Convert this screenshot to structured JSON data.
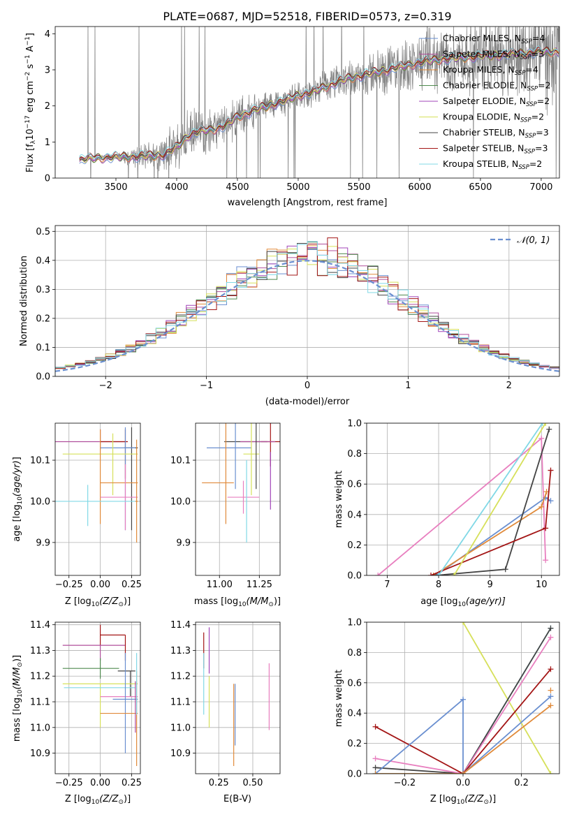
{
  "figure": {
    "title": "PLATE=0687, MJD=52518, FIBERID=0573, z=0.319"
  },
  "colors": {
    "chabrier_miles": "#6a8fd0",
    "salpeter_miles": "#b04f9c",
    "kroupa_miles": "#e08a3a",
    "chabrier_elodie": "#4f8a4f",
    "salpeter_elodie": "#a044b8",
    "kroupa_elodie": "#d6e05a",
    "chabrier_stelib": "#444444",
    "salpeter_stelib": "#a31515",
    "kroupa_stelib": "#80d8e6",
    "pink": "#e87fbf",
    "data_gray": "#808080",
    "normal_dashed": "#6a8fd0"
  },
  "chart_data": [
    {
      "id": "spectrum",
      "type": "line",
      "xlabel": "wavelength [Angstrom, rest frame]",
      "ylabel": "Flux [f_λ 10^-17 erg cm^-2 s^-1 A^-1]",
      "xlim": [
        3000,
        7150
      ],
      "ylim": [
        0,
        4.2
      ],
      "xticks": [
        3500,
        4000,
        4500,
        5000,
        5500,
        6000,
        6500,
        7000
      ],
      "yticks": [
        0,
        1,
        2,
        3,
        4
      ],
      "grid": false,
      "legend_position": "upper-right",
      "legend": [
        {
          "prefix": "Chabrier MILES, N",
          "sub": "SSP",
          "suffix": "=4",
          "color": "#6a8fd0"
        },
        {
          "prefix": "Salpeter MILES, N",
          "sub": "SSP",
          "suffix": "=3",
          "color": "#b04f9c"
        },
        {
          "prefix": "Kroupa MILES, N",
          "sub": "SSP",
          "suffix": "=4",
          "color": "#e08a3a"
        },
        {
          "prefix": "Chabrier ELODIE, N",
          "sub": "SSP",
          "suffix": "=2",
          "color": "#4f8a4f"
        },
        {
          "prefix": "Salpeter ELODIE, N",
          "sub": "SSP",
          "suffix": "=2",
          "color": "#a044b8"
        },
        {
          "prefix": "Kroupa ELODIE, N",
          "sub": "SSP",
          "suffix": "=2",
          "color": "#d6e05a"
        },
        {
          "prefix": "Chabrier STELIB, N",
          "sub": "SSP",
          "suffix": "=3",
          "color": "#444444"
        },
        {
          "prefix": "Salpeter STELIB, N",
          "sub": "SSP",
          "suffix": "=3",
          "color": "#a31515"
        },
        {
          "prefix": "Kroupa STELIB, N",
          "sub": "SSP",
          "suffix": "=2",
          "color": "#80d8e6"
        }
      ],
      "continuum": {
        "x": [
          3200,
          3300,
          3500,
          3700,
          3800,
          3900,
          4000,
          4100,
          4200,
          4300,
          4400,
          4500,
          4700,
          4900,
          5000,
          5100,
          5200,
          5400,
          5600,
          5800,
          6000,
          6200,
          6400,
          6600,
          6800,
          7000,
          7150
        ],
        "y": [
          0.5,
          0.55,
          0.58,
          0.6,
          0.62,
          0.65,
          0.85,
          1.2,
          1.3,
          1.35,
          1.45,
          1.7,
          1.95,
          2.15,
          2.3,
          2.35,
          2.5,
          2.75,
          2.9,
          3.05,
          3.2,
          3.3,
          3.35,
          3.4,
          3.45,
          3.5,
          3.5
        ]
      },
      "noise": {
        "x": [
          3200,
          3500,
          3800,
          4000,
          4200,
          4500,
          5000,
          5500,
          6000,
          6500,
          6800,
          7150
        ],
        "y": [
          0.05,
          0.08,
          0.4,
          0.6,
          0.55,
          0.45,
          0.3,
          0.5,
          0.7,
          0.9,
          1.1,
          1.4
        ]
      }
    },
    {
      "id": "residuals",
      "type": "histogram",
      "xlabel": "(data-model)/error",
      "ylabel": "Normed distribution",
      "xlim": [
        -2.5,
        2.5
      ],
      "ylim": [
        0,
        0.52
      ],
      "xticks": [
        -2,
        -1,
        0,
        1,
        2
      ],
      "yticks": [
        0.0,
        0.1,
        0.2,
        0.3,
        0.4,
        0.5
      ],
      "grid": true,
      "legend_position": "upper-right",
      "legend": [
        {
          "label": "𝒩(0, 1)",
          "color": "#6a8fd0",
          "style": "dashed"
        }
      ],
      "bin_edges_start": -2.5,
      "bin_width": 0.1
    },
    {
      "id": "z_age",
      "type": "scatter",
      "xlabel_main": "Z [log",
      "xlabel_sub": "10",
      "xlabel_tail": "(Z/Z",
      "ylabel": "age  [log10(age/yr)]",
      "xlim": [
        -0.36,
        0.32
      ],
      "ylim": [
        9.82,
        10.19
      ],
      "xticks": [
        -0.25,
        0.0,
        0.25
      ],
      "yticks": [
        9.9,
        10.0,
        10.1
      ],
      "grid": true,
      "points": [
        {
          "x": 0.0,
          "y": 10.145,
          "xerr": [
            0.36,
            0.2
          ],
          "yerr": [
            0.02,
            0.03
          ],
          "color": "#b04f9c"
        },
        {
          "x": 0.2,
          "y": 10.145,
          "xerr": [
            0.2,
            0.02
          ],
          "yerr": [
            0.09,
            0.03
          ],
          "color": "#a31515"
        },
        {
          "x": 0.25,
          "y": 10.13,
          "xerr": [
            0.06,
            0.05
          ],
          "yerr": [
            0.2,
            0.05
          ],
          "color": "#444444"
        },
        {
          "x": 0.2,
          "y": 10.13,
          "xerr": [
            0.2,
            0.08
          ],
          "yerr": [
            0.2,
            0.05
          ],
          "color": "#6a8fd0"
        },
        {
          "x": 0.1,
          "y": 10.115,
          "xerr": [
            0.4,
            0.2
          ],
          "yerr": [
            0.1,
            0.05
          ],
          "color": "#d6e05a"
        },
        {
          "x": 0.0,
          "y": 10.045,
          "xerr": [
            0.0,
            0.3
          ],
          "yerr": [
            0.1,
            0.13
          ],
          "color": "#e08a3a"
        },
        {
          "x": 0.2,
          "y": 10.01,
          "xerr": [
            0.2,
            0.1
          ],
          "yerr": [
            0.08,
            0.08
          ],
          "color": "#e87fbf"
        },
        {
          "x": -0.1,
          "y": 10.0,
          "xerr": [
            0.26,
            0.4
          ],
          "yerr": [
            0.06,
            0.04
          ],
          "color": "#80d8e6"
        },
        {
          "x": 0.29,
          "y": 10.0,
          "xerr": [
            0.01,
            0.01
          ],
          "yerr": [
            0.1,
            0.15
          ],
          "color": "#e08a3a"
        }
      ]
    },
    {
      "id": "mass_age",
      "type": "scatter",
      "xlabel_main": "mass [log",
      "xlabel_sub": "10",
      "xlabel_tail": "(M/M",
      "ylabel": "",
      "xlim": [
        10.85,
        11.38
      ],
      "ylim": [
        9.82,
        10.19
      ],
      "xticks": [
        11.0,
        11.25
      ],
      "yticks": [
        9.9,
        10.0,
        10.1
      ],
      "grid": true,
      "points": [
        {
          "x": 11.15,
          "y": 10.145,
          "xerr": [
            0.12,
            0.15
          ],
          "yerr": [
            0.0,
            0.0
          ],
          "color": "#444444"
        },
        {
          "x": 11.32,
          "y": 10.145,
          "xerr": [
            0.06,
            0.06
          ],
          "yerr": [
            0.06,
            0.09
          ],
          "color": "#a31515"
        },
        {
          "x": 11.25,
          "y": 10.145,
          "xerr": [
            0.12,
            0.1
          ],
          "yerr": [
            0.0,
            0.0
          ],
          "color": "#b04f9c"
        },
        {
          "x": 11.1,
          "y": 10.13,
          "xerr": [
            0.18,
            0.1
          ],
          "yerr": [
            0.1,
            0.15
          ],
          "color": "#6a8fd0"
        },
        {
          "x": 11.2,
          "y": 10.115,
          "xerr": [
            0.05,
            0.05
          ],
          "yerr": [
            0.1,
            0.08
          ],
          "color": "#d6e05a"
        },
        {
          "x": 11.23,
          "y": 10.13,
          "xerr": [
            0.0,
            0.0
          ],
          "yerr": [
            0.1,
            0.15
          ],
          "color": "#444444"
        },
        {
          "x": 11.04,
          "y": 10.045,
          "xerr": [
            0.15,
            0.05
          ],
          "yerr": [
            0.1,
            0.2
          ],
          "color": "#e08a3a"
        },
        {
          "x": 11.15,
          "y": 10.01,
          "xerr": [
            0.1,
            0.1
          ],
          "yerr": [
            0.04,
            0.04
          ],
          "color": "#e87fbf"
        },
        {
          "x": 11.17,
          "y": 10.0,
          "xerr": [
            0.0,
            0.0
          ],
          "yerr": [
            0.1,
            0.1
          ],
          "color": "#80d8e6"
        },
        {
          "x": 11.32,
          "y": 10.04,
          "xerr": [
            0.0,
            0.0
          ],
          "yerr": [
            0.06,
            0.08
          ],
          "color": "#a044b8"
        }
      ]
    },
    {
      "id": "age_weight",
      "type": "line",
      "xlabel_main": "age  [log",
      "xlabel_sub": "10",
      "xlabel_tail": "(age/yr)]",
      "ylabel": "mass weight",
      "xlim": [
        6.6,
        10.35
      ],
      "ylim": [
        0,
        1.0
      ],
      "xticks": [
        7,
        8,
        9,
        10
      ],
      "yticks": [
        0.0,
        0.2,
        0.4,
        0.6,
        0.8,
        1.0
      ],
      "grid": true,
      "series": [
        {
          "color": "#e87fbf",
          "x": [
            6.82,
            10.0,
            10.08
          ],
          "y": [
            0.0,
            0.9,
            0.1
          ]
        },
        {
          "color": "#6a8fd0",
          "x": [
            7.95,
            10.08,
            10.18
          ],
          "y": [
            0.0,
            0.51,
            0.49
          ]
        },
        {
          "color": "#e08a3a",
          "x": [
            7.9,
            10.0,
            10.1
          ],
          "y": [
            0.0,
            0.45,
            0.55
          ]
        },
        {
          "color": "#444444",
          "x": [
            7.95,
            9.3,
            10.15
          ],
          "y": [
            0.0,
            0.04,
            0.96
          ]
        },
        {
          "color": "#a31515",
          "x": [
            7.85,
            10.08,
            10.18
          ],
          "y": [
            0.0,
            0.31,
            0.69
          ]
        },
        {
          "color": "#80d8e6",
          "x": [
            8.0,
            10.02
          ],
          "y": [
            0.0,
            1.0
          ]
        },
        {
          "color": "#d6e05a",
          "x": [
            8.3,
            10.08
          ],
          "y": [
            0.0,
            1.0
          ]
        }
      ]
    },
    {
      "id": "z_mass",
      "type": "scatter",
      "xlabel_main": "Z [log",
      "xlabel_sub": "10",
      "xlabel_tail": "(Z/Z",
      "ylabel": "mass [log10(M/M⊙)]",
      "xlim": [
        -0.36,
        0.32
      ],
      "ylim": [
        10.82,
        11.41
      ],
      "xticks": [
        -0.25,
        0.0,
        0.25
      ],
      "yticks": [
        10.9,
        11.0,
        11.1,
        11.2,
        11.3,
        11.4
      ],
      "grid": true,
      "points": [
        {
          "x": 0.0,
          "y": 11.36,
          "xerr": [
            0.0,
            0.2
          ],
          "yerr": [
            0.04,
            0.04
          ],
          "color": "#a31515"
        },
        {
          "x": 0.0,
          "y": 11.32,
          "xerr": [
            0.3,
            0.2
          ],
          "yerr": [
            0.06,
            0.0
          ],
          "color": "#b04f9c"
        },
        {
          "x": 0.2,
          "y": 11.32,
          "xerr": [
            0.0,
            0.0
          ],
          "yerr": [
            0.06,
            0.04
          ],
          "color": "#a31515"
        },
        {
          "x": 0.0,
          "y": 11.23,
          "xerr": [
            0.3,
            0.15
          ],
          "yerr": [
            0.04,
            0.04
          ],
          "color": "#4f8a4f"
        },
        {
          "x": 0.24,
          "y": 11.22,
          "xerr": [
            0.1,
            0.04
          ],
          "yerr": [
            0.1,
            0.0
          ],
          "color": "#444444"
        },
        {
          "x": 0.0,
          "y": 11.17,
          "xerr": [
            0.3,
            0.3
          ],
          "yerr": [
            0.17,
            0.0
          ],
          "color": "#d6e05a"
        },
        {
          "x": -0.05,
          "y": 11.155,
          "xerr": [
            0.24,
            0.33
          ],
          "yerr": [
            0.0,
            0.0
          ],
          "color": "#80d8e6"
        },
        {
          "x": 0.15,
          "y": 11.12,
          "xerr": [
            0.15,
            0.15
          ],
          "yerr": [
            0.0,
            0.0
          ],
          "color": "#e87fbf"
        },
        {
          "x": 0.2,
          "y": 11.11,
          "xerr": [
            0.1,
            0.1
          ],
          "yerr": [
            0.21,
            0.18
          ],
          "color": "#6a8fd0"
        },
        {
          "x": 0.15,
          "y": 11.055,
          "xerr": [
            0.15,
            0.15
          ],
          "yerr": [
            0.0,
            0.0
          ],
          "color": "#e08a3a"
        },
        {
          "x": 0.29,
          "y": 11.05,
          "xerr": [
            0.0,
            0.0
          ],
          "yerr": [
            0.2,
            0.17
          ],
          "color": "#e08a3a"
        },
        {
          "x": 0.29,
          "y": 11.2,
          "xerr": [
            0.0,
            0.0
          ],
          "yerr": [
            0.15,
            0.09
          ],
          "color": "#80d8e6"
        },
        {
          "x": 0.28,
          "y": 11.1,
          "xerr": [
            0.0,
            0.0
          ],
          "yerr": [
            0.12,
            0.08
          ],
          "color": "#b04f9c"
        }
      ]
    },
    {
      "id": "ebv_mass",
      "type": "scatter",
      "xlabel": "E(B-V)",
      "ylabel": "",
      "xlim": [
        0.08,
        0.7
      ],
      "ylim": [
        10.82,
        11.41
      ],
      "xticks": [
        0.25,
        0.5
      ],
      "yticks": [
        10.9,
        11.0,
        11.1,
        11.2,
        11.3,
        11.4
      ],
      "grid": true,
      "points": [
        {
          "x": 0.14,
          "y": 11.3,
          "xerr": [
            0.0,
            0.0
          ],
          "yerr": [
            0.07,
            0.07
          ],
          "color": "#a31515"
        },
        {
          "x": 0.14,
          "y": 11.17,
          "xerr": [
            0.0,
            0.0
          ],
          "yerr": [
            0.12,
            0.12
          ],
          "color": "#80d8e6"
        },
        {
          "x": 0.18,
          "y": 11.3,
          "xerr": [
            0.0,
            0.0
          ],
          "yerr": [
            0.09,
            0.09
          ],
          "color": "#a044b8"
        },
        {
          "x": 0.18,
          "y": 11.1,
          "xerr": [
            0.0,
            0.0
          ],
          "yerr": [
            0.1,
            0.1
          ],
          "color": "#d6e05a"
        },
        {
          "x": 0.36,
          "y": 11.05,
          "xerr": [
            0.0,
            0.0
          ],
          "yerr": [
            0.2,
            0.12
          ],
          "color": "#e08a3a"
        },
        {
          "x": 0.37,
          "y": 11.05,
          "xerr": [
            0.0,
            0.0
          ],
          "yerr": [
            0.12,
            0.12
          ],
          "color": "#6a8fd0"
        },
        {
          "x": 0.62,
          "y": 11.12,
          "xerr": [
            0.0,
            0.0
          ],
          "yerr": [
            0.13,
            0.13
          ],
          "color": "#e87fbf"
        }
      ]
    },
    {
      "id": "z_weight",
      "type": "line",
      "xlabel_main": "Z [log",
      "xlabel_sub": "10",
      "xlabel_tail": "(Z/Z",
      "ylabel": "mass weight",
      "xlim": [
        -0.33,
        0.33
      ],
      "ylim": [
        0,
        1.0
      ],
      "xticks": [
        -0.2,
        0.0,
        0.2
      ],
      "yticks": [
        0.0,
        0.2,
        0.4,
        0.6,
        0.8,
        1.0
      ],
      "grid": true,
      "series": [
        {
          "color": "#d6e05a",
          "x": [
            0.0,
            0.3
          ],
          "y": [
            1.0,
            0.0
          ]
        },
        {
          "color": "#80d8e6",
          "x": [
            -0.3,
            0.0,
            0.3
          ],
          "y": [
            0.0,
            0.0,
            0.96
          ]
        },
        {
          "color": "#444444",
          "x": [
            -0.3,
            0.0,
            0.3
          ],
          "y": [
            0.04,
            0.0,
            0.96
          ]
        },
        {
          "color": "#e87fbf",
          "x": [
            -0.3,
            0.0,
            0.3
          ],
          "y": [
            0.1,
            0.0,
            0.9
          ]
        },
        {
          "color": "#a31515",
          "x": [
            -0.3,
            0.0,
            0.3
          ],
          "y": [
            0.31,
            0.0,
            0.69
          ]
        },
        {
          "color": "#6a8fd0",
          "x": [
            -0.3,
            0.0,
            0.0,
            0.3
          ],
          "y": [
            0.0,
            0.49,
            0.0,
            0.51
          ]
        },
        {
          "color": "#e08a3a",
          "x": [
            -0.3,
            0.0,
            0.3
          ],
          "y": [
            0.0,
            0.0,
            0.45
          ]
        },
        {
          "color": "#e08a3a",
          "x": [
            0.3
          ],
          "y": [
            0.55
          ]
        }
      ]
    }
  ]
}
